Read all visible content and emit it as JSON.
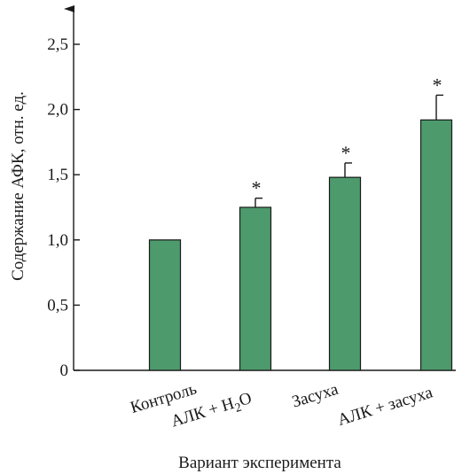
{
  "chart_data": {
    "type": "bar",
    "categories": [
      "Контроль",
      "АЛК + H2O",
      "Засуха",
      "АЛК + засуха"
    ],
    "category_parts": [
      {
        "main": "Контроль",
        "sub": "",
        "tail": ""
      },
      {
        "main": "АЛК + H",
        "sub": "2",
        "tail": "O"
      },
      {
        "main": "Засуха",
        "sub": "",
        "tail": ""
      },
      {
        "main": "АЛК + засуха",
        "sub": "",
        "tail": ""
      }
    ],
    "values": [
      1.0,
      1.25,
      1.48,
      1.92
    ],
    "errors": [
      0,
      0.07,
      0.11,
      0.19
    ],
    "significance": [
      "",
      "*",
      "*",
      "*"
    ],
    "xlabel": "Вариант эксперимента",
    "ylabel": "Содержание АФК, отн. ед.",
    "ylim": [
      0,
      2.5
    ],
    "yticks": [
      0,
      0.5,
      1.0,
      1.5,
      2.0,
      2.5
    ],
    "ytick_labels": [
      "0",
      "0,5",
      "1,0",
      "1,5",
      "2,0",
      "2,5"
    ],
    "grid": false,
    "bar_color": "#4d9a6c"
  }
}
